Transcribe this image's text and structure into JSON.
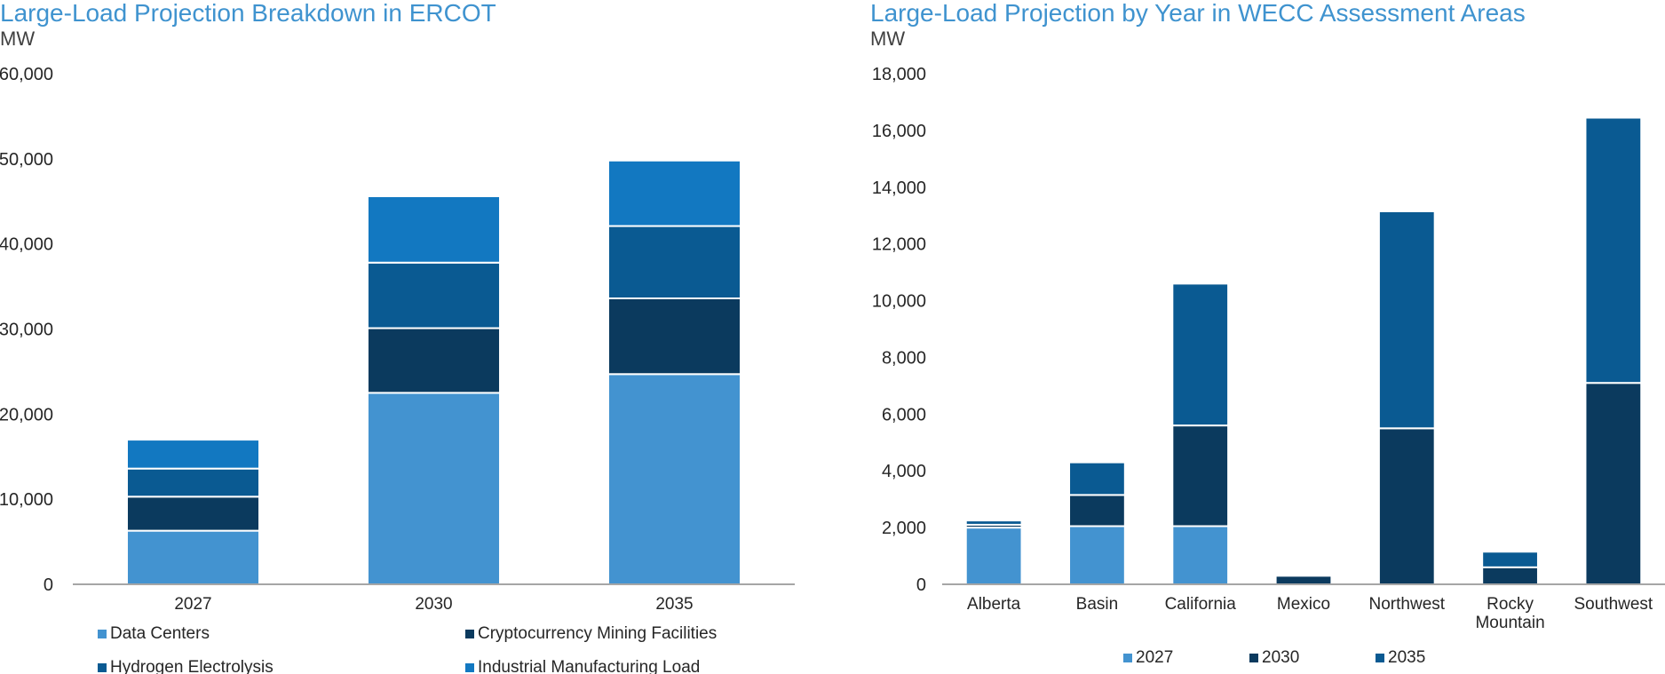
{
  "chart_data": [
    {
      "type": "bar",
      "stacked": true,
      "title": "Large-Load Projection Breakdown in ERCOT",
      "ylabel": "MW",
      "categories": [
        "2027",
        "2030",
        "2035"
      ],
      "ylim": [
        0,
        60000
      ],
      "yticks": [
        0,
        10000,
        20000,
        30000,
        40000,
        50000,
        60000
      ],
      "ytick_labels": [
        "0",
        "10,000",
        "20,000",
        "30,000",
        "40,000",
        "50,000",
        "60,000"
      ],
      "grid": false,
      "legend": "bottom",
      "series": [
        {
          "name": "Data Centers",
          "color": "#4393d0",
          "values": [
            6300,
            22500,
            24700
          ]
        },
        {
          "name": "Cryptocurrency Mining Facilities",
          "color": "#0b3a5e",
          "values": [
            4000,
            7600,
            8900
          ]
        },
        {
          "name": "Hydrogen Electrolysis",
          "color": "#0a5a92",
          "values": [
            3300,
            7700,
            8500
          ]
        },
        {
          "name": "Industrial Manufacturing Load",
          "color": "#1278c1",
          "values": [
            3400,
            7800,
            7700
          ]
        }
      ]
    },
    {
      "type": "bar",
      "stacked": true,
      "title": "Large-Load Projection by Year in WECC Assessment Areas",
      "ylabel": "MW",
      "categories": [
        "Alberta",
        "Basin",
        "California",
        "Mexico",
        "Northwest",
        "Rocky Mountain",
        "Southwest"
      ],
      "category_lines": [
        [
          "Alberta"
        ],
        [
          "Basin"
        ],
        [
          "California"
        ],
        [
          "Mexico"
        ],
        [
          "Northwest"
        ],
        [
          "Rocky",
          "Mountain"
        ],
        [
          "Southwest"
        ]
      ],
      "ylim": [
        0,
        18000
      ],
      "yticks": [
        0,
        2000,
        4000,
        6000,
        8000,
        10000,
        12000,
        14000,
        16000,
        18000
      ],
      "ytick_labels": [
        "0",
        "2,000",
        "4,000",
        "6,000",
        "8,000",
        "10,000",
        "12,000",
        "14,000",
        "16,000",
        "18,000"
      ],
      "grid": false,
      "legend": "bottom",
      "series": [
        {
          "name": "2027",
          "color": "#4393d0",
          "values": [
            2000,
            2050,
            2050,
            0,
            0,
            0,
            0
          ]
        },
        {
          "name": "2030",
          "color": "#0b3a5e",
          "values": [
            100,
            1100,
            3550,
            300,
            5500,
            600,
            7100
          ]
        },
        {
          "name": "2035",
          "color": "#0a5a92",
          "values": [
            150,
            1150,
            5000,
            0,
            7650,
            550,
            9350
          ]
        }
      ]
    }
  ]
}
